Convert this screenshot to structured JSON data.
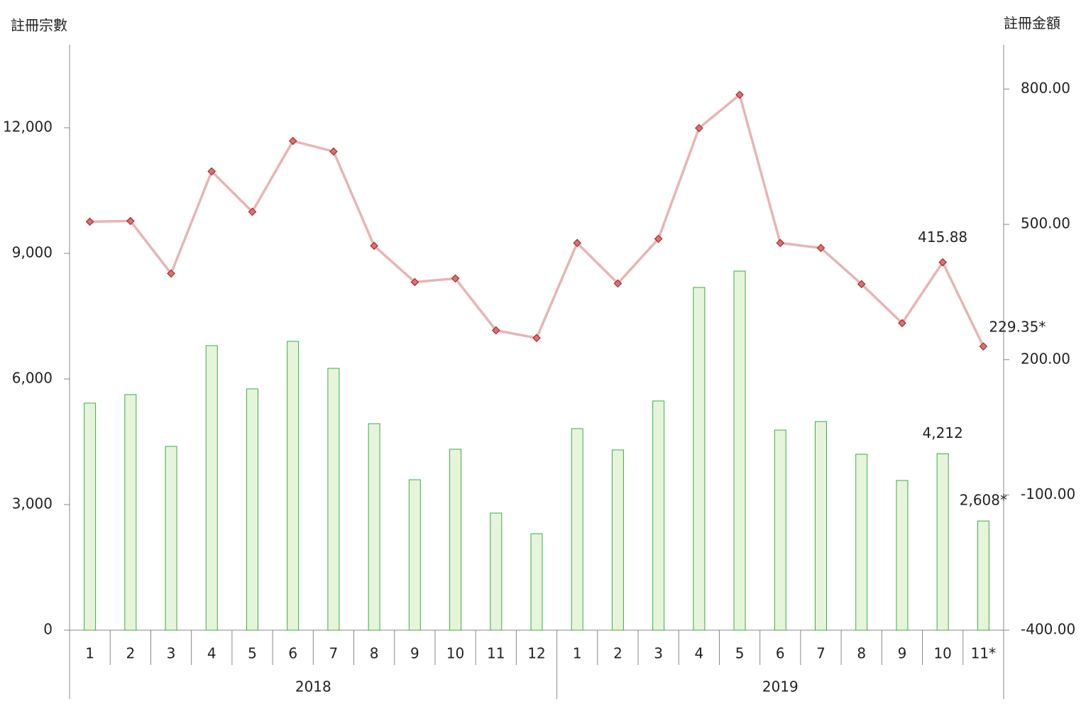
{
  "chart_data": {
    "type": "bar-line",
    "y_label": "註冊宗數",
    "y2_label": "註冊金額",
    "categories": [
      "1",
      "2",
      "3",
      "4",
      "5",
      "6",
      "7",
      "8",
      "9",
      "10",
      "11",
      "12",
      "1",
      "2",
      "3",
      "4",
      "5",
      "6",
      "7",
      "8",
      "9",
      "10",
      "11*"
    ],
    "groups": [
      "2018",
      "2019"
    ],
    "ylim": [
      0,
      14000
    ],
    "yticks": [
      {
        "value": 0,
        "label": "0"
      },
      {
        "value": 3000,
        "label": "3,000"
      },
      {
        "value": 6000,
        "label": "6,000"
      },
      {
        "value": 9000,
        "label": "9,000"
      },
      {
        "value": 12000,
        "label": "12,000"
      }
    ],
    "y2lim": [
      -400,
      900
    ],
    "y2ticks": [
      {
        "value": -400,
        "label": "-400.00"
      },
      {
        "value": -100,
        "label": "-100.00"
      },
      {
        "value": 200,
        "label": "200.00"
      },
      {
        "value": 500,
        "label": "500.00"
      },
      {
        "value": 800,
        "label": "800.00"
      }
    ],
    "series": [
      {
        "name": "註冊宗數",
        "type": "bar",
        "color": "#e6f5d9",
        "stroke": "#3aab4a",
        "values": [
          5424,
          5627,
          4390,
          6797,
          5763,
          6898,
          6254,
          4932,
          3593,
          4322,
          2797,
          2305,
          4814,
          4305,
          5475,
          8186,
          8576,
          4780,
          4983,
          4203,
          3576,
          4212,
          2608
        ],
        "value_labels": [
          null,
          null,
          null,
          null,
          null,
          null,
          null,
          null,
          null,
          null,
          null,
          null,
          null,
          null,
          null,
          null,
          null,
          null,
          null,
          null,
          null,
          "4,212",
          "2,608*"
        ]
      },
      {
        "name": "註冊金額",
        "type": "line",
        "axis": "y2",
        "color": "#e8b4b4",
        "marker_color": "#e07070",
        "values": [
          505.9,
          507.5,
          391,
          617.5,
          528,
          685,
          661.6,
          452.4,
          372,
          380,
          265,
          248,
          458.7,
          369,
          468,
          713.5,
          787.4,
          458.7,
          447.7,
          367.5,
          281,
          415.88,
          229.35
        ],
        "value_labels": [
          null,
          null,
          null,
          null,
          null,
          null,
          null,
          null,
          null,
          null,
          null,
          null,
          null,
          null,
          null,
          null,
          null,
          null,
          null,
          null,
          null,
          "415.88",
          "229.35*"
        ]
      }
    ]
  }
}
